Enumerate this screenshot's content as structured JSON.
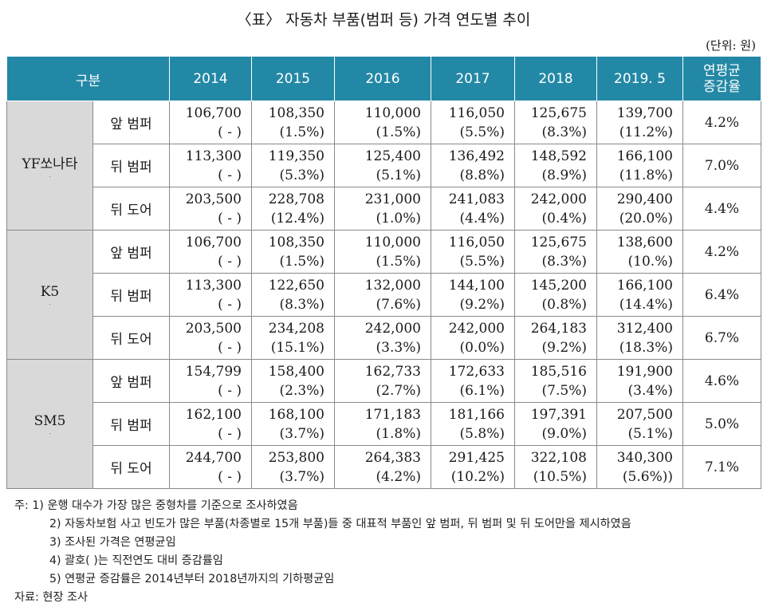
{
  "title": "〈표〉 자동차 부품(범퍼 등) 가격 연도별 추이",
  "unit": "(단위: 원)",
  "header": {
    "category": "구분",
    "years": [
      "2014",
      "2015",
      "2016",
      "2017",
      "2018",
      "2019. 5"
    ],
    "rate_line1": "연평균",
    "rate_line2": "증감율"
  },
  "groups": [
    {
      "name": "YF쏘나타",
      "rows": [
        {
          "part": "앞 범퍼",
          "values": [
            "106,700",
            "108,350",
            "110,000",
            "116,050",
            "125,675",
            "139,700"
          ],
          "changes": [
            "( - )",
            "(1.5%)",
            "(1.5%)",
            "(5.5%)",
            "(8.3%)",
            "(11.2%)"
          ],
          "rate": "4.2%"
        },
        {
          "part": "뒤 범퍼",
          "values": [
            "113,300",
            "119,350",
            "125,400",
            "136,492",
            "148,592",
            "166,100"
          ],
          "changes": [
            "( - )",
            "(5.3%)",
            "(5.1%)",
            "(8.8%)",
            "(8.9%)",
            "(11.8%)"
          ],
          "rate": "7.0%"
        },
        {
          "part": "뒤 도어",
          "values": [
            "203,500",
            "228,708",
            "231,000",
            "241,083",
            "242,000",
            "290,400"
          ],
          "changes": [
            "( - )",
            "(12.4%)",
            "(1.0%)",
            "(4.4%)",
            "(0.4%)",
            "(20.0%)"
          ],
          "rate": "4.4%"
        }
      ]
    },
    {
      "name": "K5",
      "rows": [
        {
          "part": "앞 범퍼",
          "values": [
            "106,700",
            "108,350",
            "110,000",
            "116,050",
            "125,675",
            "138,600"
          ],
          "changes": [
            "( - )",
            "(1.5%)",
            "(1.5%)",
            "(5.5%)",
            "(8.3%)",
            "(10.%)"
          ],
          "rate": "4.2%"
        },
        {
          "part": "뒤 범퍼",
          "values": [
            "113,300",
            "122,650",
            "132,000",
            "144,100",
            "145,200",
            "166,100"
          ],
          "changes": [
            "( - )",
            "(8.3%)",
            "(7.6%)",
            "(9.2%)",
            "(0.8%)",
            "(14.4%)"
          ],
          "rate": "6.4%"
        },
        {
          "part": "뒤 도어",
          "values": [
            "203,500",
            "234,208",
            "242,000",
            "242,000",
            "264,183",
            "312,400"
          ],
          "changes": [
            "( - )",
            "(15.1%)",
            "(3.3%)",
            "(0.0%)",
            "(9.2%)",
            "(18.3%)"
          ],
          "rate": "6.7%"
        }
      ]
    },
    {
      "name": "SM5",
      "rows": [
        {
          "part": "앞 범퍼",
          "values": [
            "154,799",
            "158,400",
            "162,733",
            "172,633",
            "185,516",
            "191,900"
          ],
          "changes": [
            "( - )",
            "(2.3%)",
            "(2.7%)",
            "(6.1%)",
            "(7.5%)",
            "(3.4%)"
          ],
          "rate": "4.6%"
        },
        {
          "part": "뒤 범퍼",
          "values": [
            "162,100",
            "168,100",
            "171,183",
            "181,166",
            "197,391",
            "207,500"
          ],
          "changes": [
            "( - )",
            "(3.7%)",
            "(1.8%)",
            "(5.8%)",
            "(9.0%)",
            "(5.1%)"
          ],
          "rate": "5.0%"
        },
        {
          "part": "뒤 도어",
          "values": [
            "244,700",
            "253,800",
            "264,383",
            "291,425",
            "322,108",
            "340,300"
          ],
          "changes": [
            "( - )",
            "(3.7%)",
            "(4.2%)",
            "(10.2%)",
            "(10.5%)",
            "(5.6%))"
          ],
          "rate": "7.1%"
        }
      ]
    }
  ],
  "notes": [
    "주: 1) 운행 대수가 가장 많은 중형차를 기준으로 조사하였음",
    "2) 자동차보험 사고 빈도가 많은 부품(차종별로 15개 부품)들 중 대표적 부품인 앞 범퍼, 뒤 범퍼 및 뒤 도어만을 제시하였음",
    "3) 조사된 가격은 연평균임",
    "4) 괄호( )는 직전연도 대비 증감률임",
    "5) 연평균 증감률은 2014년부터 2018년까지의 기하평균임"
  ],
  "source": "자료: 현장 조사"
}
